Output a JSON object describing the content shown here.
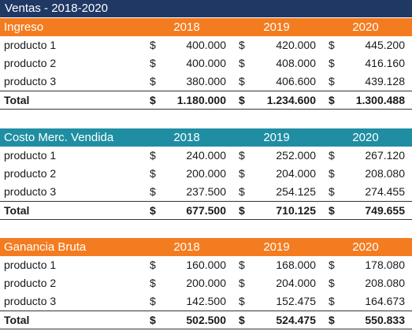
{
  "title": "Ventas - 2018-2020",
  "currency": "$",
  "colors": {
    "title_bg": "#1f3864",
    "orange": "#f47c20",
    "teal": "#1f8ea3"
  },
  "sections": [
    {
      "header": "Ingreso",
      "years": [
        "2018",
        "2019",
        "2020"
      ],
      "rows": [
        {
          "label": "producto 1",
          "values": [
            "400.000",
            "420.000",
            "445.200"
          ]
        },
        {
          "label": "producto 2",
          "values": [
            "400.000",
            "408.000",
            "416.160"
          ]
        },
        {
          "label": "producto 3",
          "values": [
            "380.000",
            "406.600",
            "439.128"
          ]
        }
      ],
      "total": {
        "label": "Total",
        "values": [
          "1.180.000",
          "1.234.600",
          "1.300.488"
        ]
      }
    },
    {
      "header": "Costo Merc. Vendida",
      "years": [
        "2018",
        "2019",
        "2020"
      ],
      "rows": [
        {
          "label": "producto 1",
          "values": [
            "240.000",
            "252.000",
            "267.120"
          ]
        },
        {
          "label": "producto 2",
          "values": [
            "200.000",
            "204.000",
            "208.080"
          ]
        },
        {
          "label": "producto 3",
          "values": [
            "237.500",
            "254.125",
            "274.455"
          ]
        }
      ],
      "total": {
        "label": "Total",
        "values": [
          "677.500",
          "710.125",
          "749.655"
        ]
      }
    },
    {
      "header": "Ganancia Bruta",
      "years": [
        "2018",
        "2019",
        "2020"
      ],
      "rows": [
        {
          "label": "producto 1",
          "values": [
            "160.000",
            "168.000",
            "178.080"
          ]
        },
        {
          "label": "producto 2",
          "values": [
            "200.000",
            "204.000",
            "208.080"
          ]
        },
        {
          "label": "producto 3",
          "values": [
            "142.500",
            "152.475",
            "164.673"
          ]
        }
      ],
      "total": {
        "label": "Total",
        "values": [
          "502.500",
          "524.475",
          "550.833"
        ]
      }
    }
  ]
}
